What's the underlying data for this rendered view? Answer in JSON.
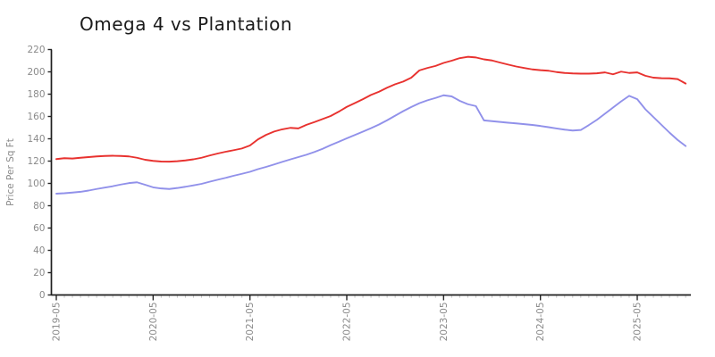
{
  "chart_data": {
    "type": "line",
    "title": "Omega 4 vs Plantation",
    "xlabel": "",
    "ylabel": "Price Per Sq Ft",
    "ylim": [
      0,
      220
    ],
    "ytick_step": 20,
    "grid": false,
    "legend": "none",
    "x_tick_labels": [
      "2019-05",
      "2020-05",
      "2021-05",
      "2022-05",
      "2023-05",
      "2024-05",
      "2025-05"
    ],
    "x": [
      "2019-05",
      "2019-06",
      "2019-07",
      "2019-08",
      "2019-09",
      "2019-10",
      "2019-11",
      "2019-12",
      "2020-01",
      "2020-02",
      "2020-03",
      "2020-04",
      "2020-05",
      "2020-06",
      "2020-07",
      "2020-08",
      "2020-09",
      "2020-10",
      "2020-11",
      "2020-12",
      "2021-01",
      "2021-02",
      "2021-03",
      "2021-04",
      "2021-05",
      "2021-06",
      "2021-07",
      "2021-08",
      "2021-09",
      "2021-10",
      "2021-11",
      "2021-12",
      "2022-01",
      "2022-02",
      "2022-03",
      "2022-04",
      "2022-05",
      "2022-06",
      "2022-07",
      "2022-08",
      "2022-09",
      "2022-10",
      "2022-11",
      "2022-12",
      "2023-01",
      "2023-02",
      "2023-03",
      "2023-04",
      "2023-05",
      "2023-06",
      "2023-07",
      "2023-08",
      "2023-09",
      "2023-10",
      "2023-11",
      "2023-12",
      "2024-01",
      "2024-02",
      "2024-03",
      "2024-04",
      "2024-05",
      "2024-06",
      "2024-07",
      "2024-08",
      "2024-09",
      "2024-10",
      "2024-11",
      "2024-12",
      "2025-01",
      "2025-02",
      "2025-03",
      "2025-04",
      "2025-05",
      "2025-06",
      "2025-07",
      "2025-08",
      "2025-09",
      "2025-10",
      "2025-11"
    ],
    "series": [
      {
        "name": "Omega 4",
        "color": "#e8322f",
        "values": [
          121.8,
          122.6,
          122.3,
          123,
          123.6,
          124.2,
          124.6,
          124.8,
          124.6,
          124.2,
          123,
          121.2,
          120.2,
          119.6,
          119.5,
          119.9,
          120.6,
          121.6,
          123,
          125,
          126.8,
          128.4,
          129.8,
          131.3,
          134,
          139.5,
          143.5,
          146.5,
          148.5,
          149.8,
          149.3,
          152.5,
          155,
          157.7,
          160.4,
          164.3,
          168.6,
          172,
          175.5,
          179.3,
          182.2,
          185.8,
          188.9,
          191.3,
          194.8,
          201.3,
          203.5,
          205.3,
          208,
          210,
          212.3,
          213.5,
          212.9,
          211.2,
          210.2,
          208.3,
          206.5,
          204.8,
          203.5,
          202.2,
          201.5,
          201,
          199.8,
          199,
          198.6,
          198.4,
          198.4,
          198.7,
          199.5,
          197.8,
          200.2,
          199,
          199.5,
          196.5,
          194.8,
          194.3,
          194.2,
          193.5,
          189.5
        ]
      },
      {
        "name": "Plantation",
        "color": "#9191ea",
        "values": [
          90.8,
          91.2,
          91.8,
          92.5,
          93.6,
          95,
          96.3,
          97.5,
          99,
          100.3,
          101,
          98.8,
          96.5,
          95.5,
          95,
          95.9,
          97,
          98.3,
          99.6,
          101.5,
          103.3,
          105,
          106.9,
          108.6,
          110.4,
          112.8,
          114.8,
          117,
          119.3,
          121.5,
          123.6,
          125.7,
          128.2,
          131,
          134.3,
          137.3,
          140.4,
          143.4,
          146.4,
          149.5,
          152.8,
          156.6,
          160.7,
          164.8,
          168.5,
          171.9,
          174.5,
          176.6,
          179,
          178,
          174,
          171,
          169.3,
          156.5,
          155.8,
          155.1,
          154.4,
          153.8,
          153.1,
          152.4,
          151.5,
          150.4,
          149.3,
          148.2,
          147.4,
          147.9,
          152.3,
          157,
          162.5,
          168,
          173.5,
          178.5,
          175.5,
          166.5,
          159.5,
          152.5,
          145.5,
          139,
          133.5
        ]
      }
    ],
    "colors": {
      "spine": "#1f1f1f",
      "major_tick": "#262626",
      "minor_tick": "#c9c9c9",
      "tick_label": "#8a8a8a",
      "title": "#1b1b1b"
    }
  }
}
